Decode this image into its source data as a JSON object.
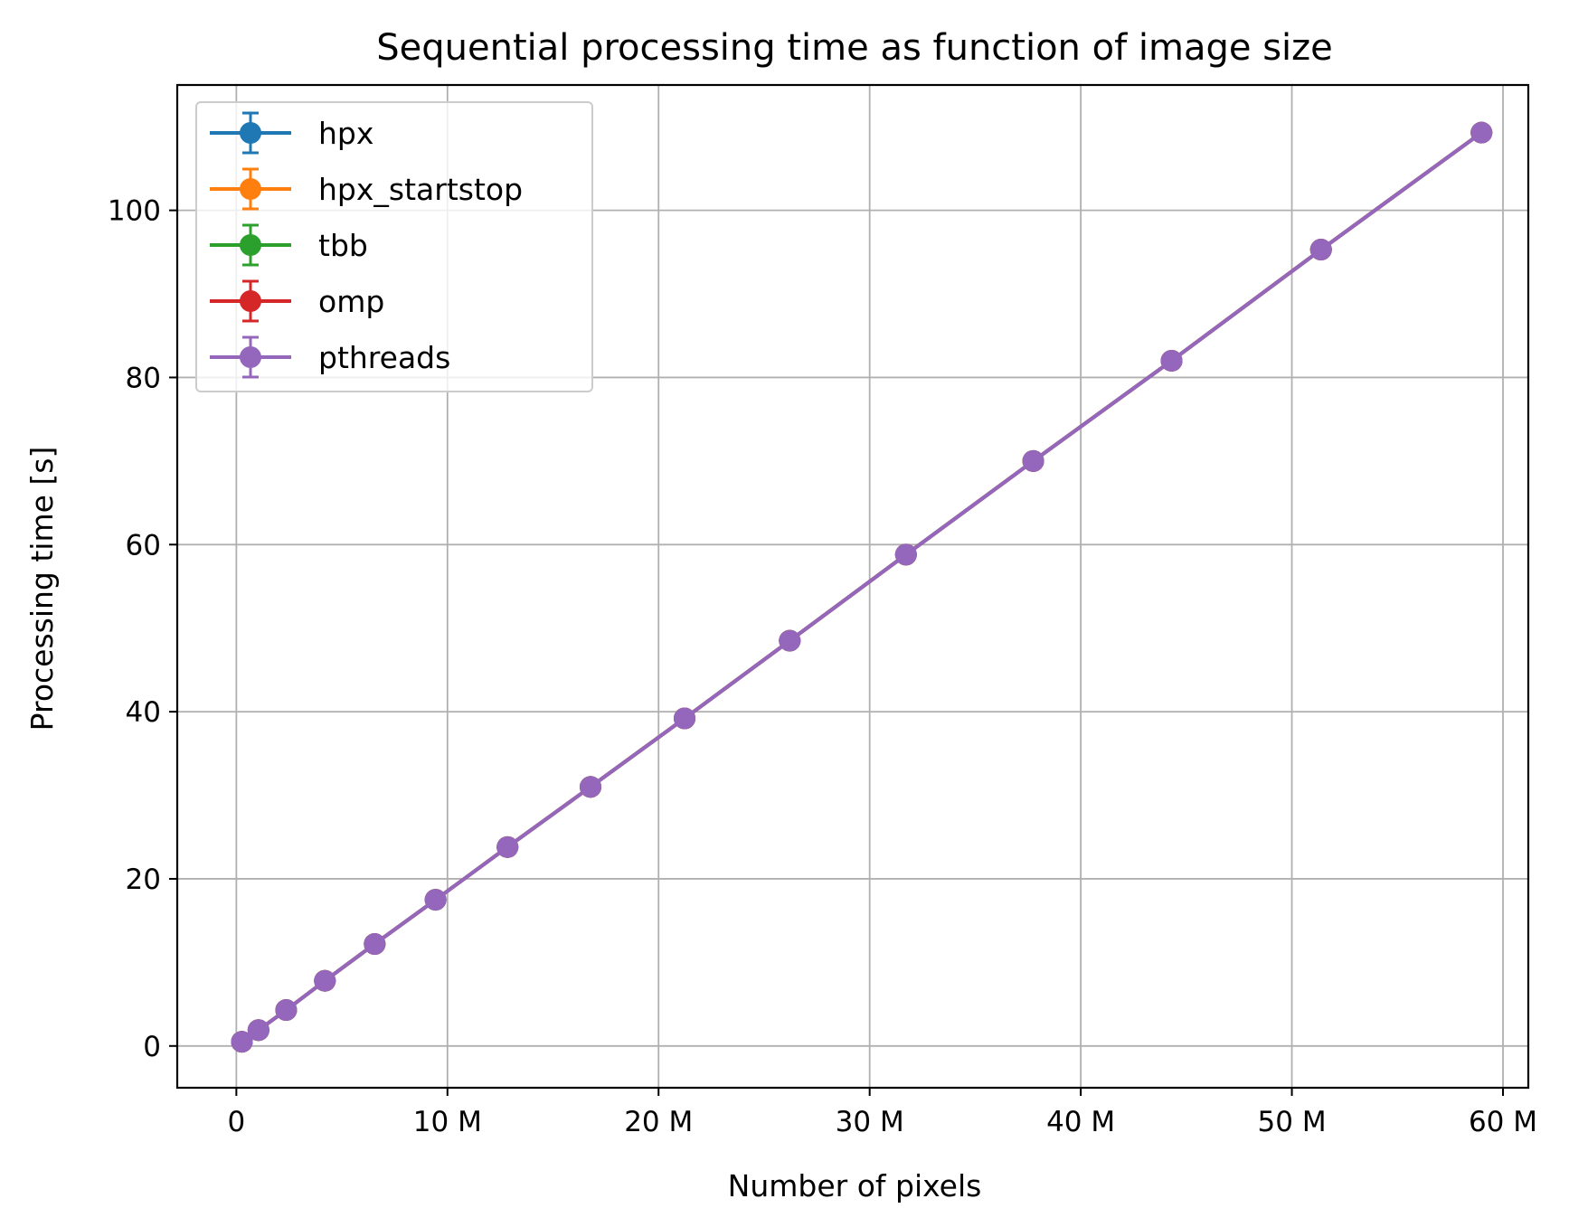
{
  "chart_data": {
    "type": "line",
    "title": "Sequential processing time as function of image size",
    "xlabel": "Number of pixels",
    "ylabel": "Processing time [s]",
    "xlim": [
      -2800000,
      61200000
    ],
    "ylim": [
      -5,
      115
    ],
    "grid": true,
    "legend_position": "top-left",
    "x_ticks": [
      {
        "value": 0,
        "label": "0"
      },
      {
        "value": 10000000,
        "label": "10 M"
      },
      {
        "value": 20000000,
        "label": "20 M"
      },
      {
        "value": 30000000,
        "label": "30 M"
      },
      {
        "value": 40000000,
        "label": "40 M"
      },
      {
        "value": 50000000,
        "label": "50 M"
      },
      {
        "value": 60000000,
        "label": "60 M"
      }
    ],
    "y_ticks": [
      {
        "value": 0,
        "label": "0"
      },
      {
        "value": 20,
        "label": "20"
      },
      {
        "value": 40,
        "label": "40"
      },
      {
        "value": 60,
        "label": "60"
      },
      {
        "value": 80,
        "label": "80"
      },
      {
        "value": 100,
        "label": "100"
      }
    ],
    "x": [
      262144,
      1048576,
      2359296,
      4194304,
      6553600,
      9437184,
      12845056,
      16777216,
      21233664,
      26214400,
      31719424,
      37748736,
      44302336,
      51380224,
      58982400
    ],
    "series": [
      {
        "name": "hpx",
        "color": "#1f77b4",
        "values": [
          0.5,
          1.9,
          4.3,
          7.8,
          12.2,
          17.5,
          23.8,
          31.0,
          39.2,
          48.5,
          58.8,
          70.0,
          82.0,
          95.3,
          109.3
        ]
      },
      {
        "name": "hpx_startstop",
        "color": "#ff7f0e",
        "values": [
          0.5,
          1.9,
          4.3,
          7.8,
          12.2,
          17.5,
          23.8,
          31.0,
          39.2,
          48.5,
          58.8,
          70.0,
          82.0,
          95.3,
          109.3
        ]
      },
      {
        "name": "tbb",
        "color": "#2ca02c",
        "values": [
          0.5,
          1.9,
          4.3,
          7.8,
          12.2,
          17.5,
          23.8,
          31.0,
          39.2,
          48.5,
          58.8,
          70.0,
          82.0,
          95.3,
          109.3
        ]
      },
      {
        "name": "omp",
        "color": "#d62728",
        "values": [
          0.5,
          1.9,
          4.3,
          7.8,
          12.2,
          17.5,
          23.8,
          31.0,
          39.2,
          48.5,
          58.8,
          70.0,
          82.0,
          95.3,
          109.3
        ]
      },
      {
        "name": "pthreads",
        "color": "#9467bd",
        "values": [
          0.5,
          1.9,
          4.3,
          7.8,
          12.2,
          17.5,
          23.8,
          31.0,
          39.2,
          48.5,
          58.8,
          70.0,
          82.0,
          95.3,
          109.3
        ]
      }
    ]
  }
}
